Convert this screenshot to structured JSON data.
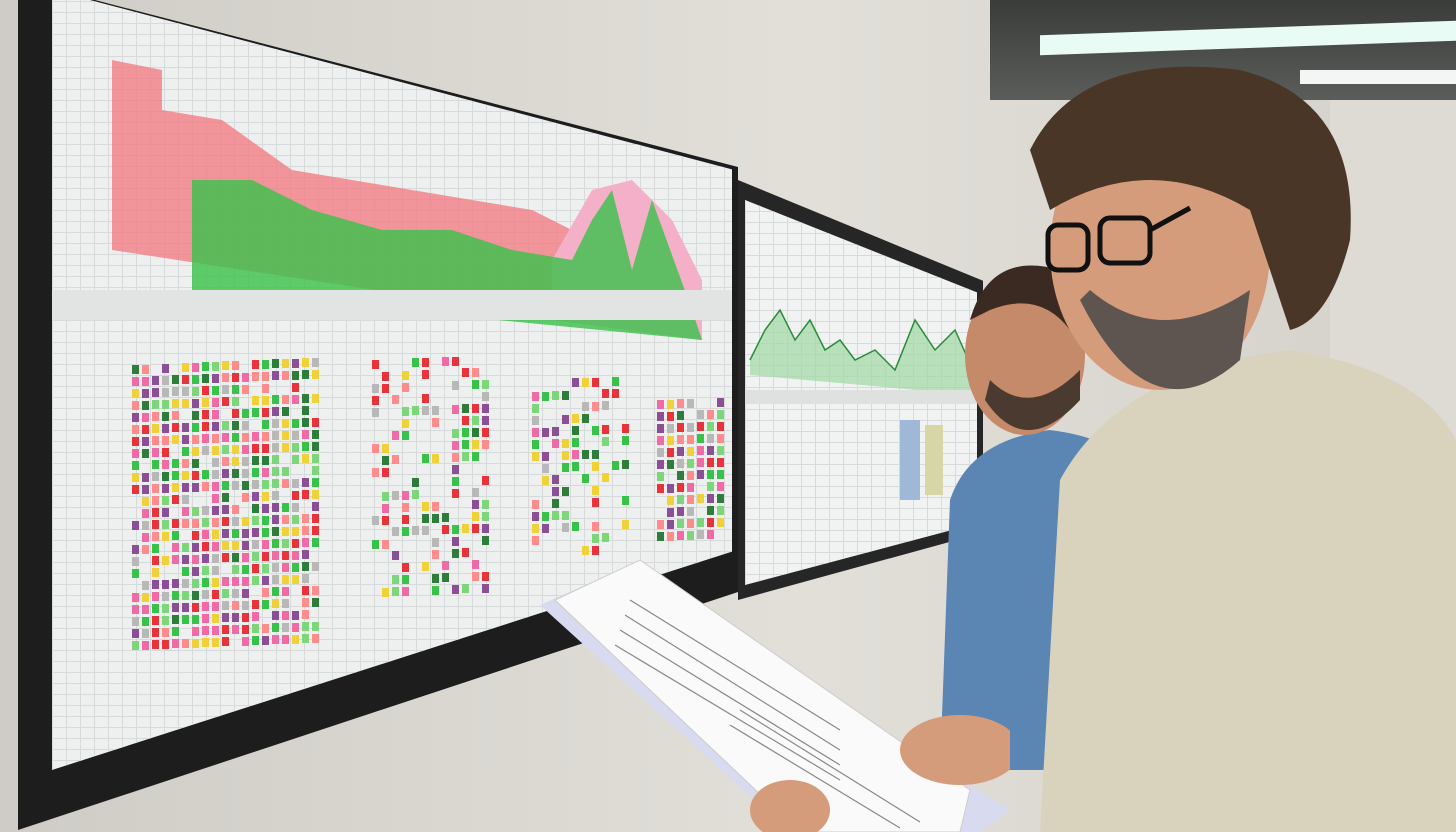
{
  "scene": {
    "description_colors": {
      "wall": "#dcd9d3",
      "screen_bezel": "#1d1d1d",
      "chart_red": "#f2777f",
      "chart_pink": "#f4b0c8",
      "chart_green": "#39c24a",
      "heatmap_purple": "#8b4f96",
      "sweater_man": "#d9d3bd",
      "blue_shirt_man": "#5b86b3"
    },
    "heatmap_palette": [
      "#e8333a",
      "#39c24a",
      "#f06aa6",
      "#8b4f96",
      "#f0d13a",
      "#2e7d3b",
      "#b8b8b8",
      "#ff8c8c",
      "#7ed67a"
    ]
  }
}
